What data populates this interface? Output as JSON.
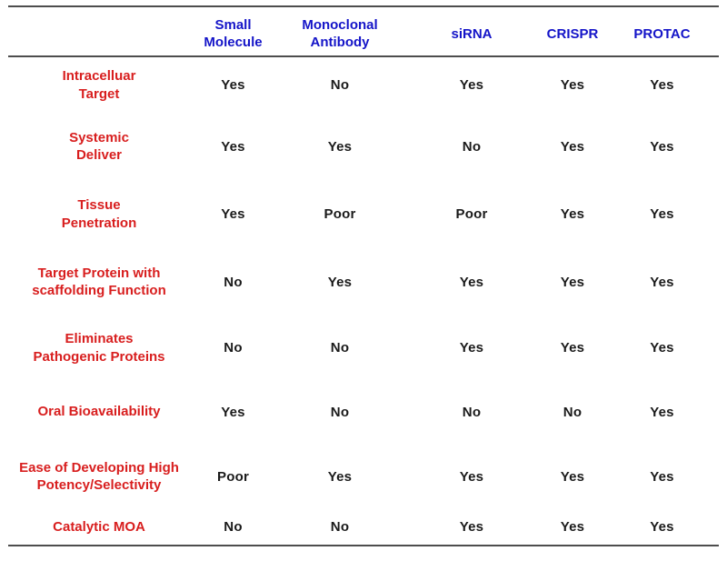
{
  "chart_data": {
    "type": "table",
    "title": "",
    "columns": [
      "Small\nMolecule",
      "Monoclonal\nAntibody",
      "siRNA",
      "CRISPR",
      "PROTAC"
    ],
    "rows": [
      {
        "label": "Intracelluar\nTarget",
        "values": [
          "Yes",
          "No",
          "Yes",
          "Yes",
          "Yes"
        ]
      },
      {
        "label": "Systemic\nDeliver",
        "values": [
          "Yes",
          "Yes",
          "No",
          "Yes",
          "Yes"
        ]
      },
      {
        "label": "Tissue\nPenetration",
        "values": [
          "Yes",
          "Poor",
          "Poor",
          "Yes",
          "Yes"
        ]
      },
      {
        "label": "Target Protein with\nscaffolding Function",
        "values": [
          "No",
          "Yes",
          "Yes",
          "Yes",
          "Yes"
        ]
      },
      {
        "label": "Eliminates\nPathogenic Proteins",
        "values": [
          "No",
          "No",
          "Yes",
          "Yes",
          "Yes"
        ]
      },
      {
        "label": "Oral Bioavailability",
        "values": [
          "Yes",
          "No",
          "No",
          "No",
          "Yes"
        ]
      },
      {
        "label": "Ease of Developing High\nPotency/Selectivity",
        "values": [
          "Poor",
          "Yes",
          "Yes",
          "Yes",
          "Yes"
        ]
      },
      {
        "label": "Catalytic MOA",
        "values": [
          "No",
          "No",
          "Yes",
          "Yes",
          "Yes"
        ]
      }
    ],
    "layout_hints": {
      "grid": "horizontal rules only: top, below header, bottom",
      "legend": "none"
    },
    "colors": {
      "header_text": "#1414C8",
      "row_label_text": "#D81E1E",
      "value_text": "#1A1A1A",
      "rule": "#4D4D4D",
      "background": "#FFFFFF"
    }
  }
}
